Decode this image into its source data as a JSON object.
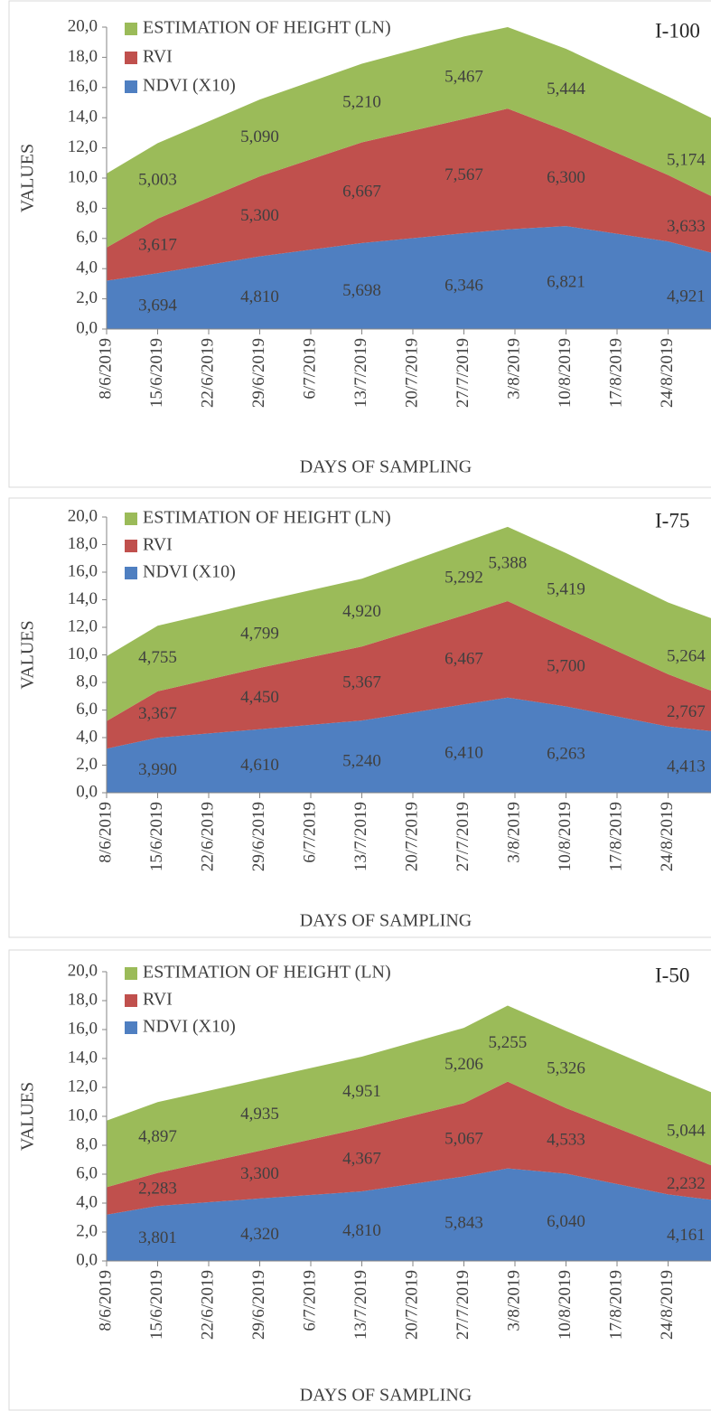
{
  "chart_data": [
    {
      "type": "area",
      "stacked": true,
      "title": "I-100",
      "ylabel": "VALUES",
      "xlabel": "DAYS OF SAMPLING",
      "legend": "upper left",
      "x": [
        "2019-06-08",
        "2019-06-15",
        "2019-06-29",
        "2019-07-13",
        "2019-07-27",
        "2019-08-02",
        "2019-08-10",
        "2019-08-24",
        "2019-08-31"
      ],
      "xlim": [
        "2019-06-08",
        "2019-08-31"
      ],
      "xticks": [
        {
          "value": "2019-06-08",
          "label": "8/6/2019"
        },
        {
          "value": "2019-06-15",
          "label": "15/6/2019"
        },
        {
          "value": "2019-06-22",
          "label": "22/6/2019"
        },
        {
          "value": "2019-06-29",
          "label": "29/6/2019"
        },
        {
          "value": "2019-07-06",
          "label": "6/7/2019"
        },
        {
          "value": "2019-07-13",
          "label": "13/7/2019"
        },
        {
          "value": "2019-07-20",
          "label": "20/7/2019"
        },
        {
          "value": "2019-07-27",
          "label": "27/7/2019"
        },
        {
          "value": "2019-08-03",
          "label": "3/8/2019"
        },
        {
          "value": "2019-08-10",
          "label": "10/8/2019"
        },
        {
          "value": "2019-08-17",
          "label": "17/8/2019"
        },
        {
          "value": "2019-08-24",
          "label": "24/8/2019"
        }
      ],
      "ylim": [
        0,
        20
      ],
      "yticks": [
        {
          "value": 0,
          "label": "0,0"
        },
        {
          "value": 2,
          "label": "2,0"
        },
        {
          "value": 4,
          "label": "4,0"
        },
        {
          "value": 6,
          "label": "6,0"
        },
        {
          "value": 8,
          "label": "8,0"
        },
        {
          "value": 10,
          "label": "10,0"
        },
        {
          "value": 12,
          "label": "12,0"
        },
        {
          "value": 14,
          "label": "14,0"
        },
        {
          "value": 16,
          "label": "16,0"
        },
        {
          "value": 18,
          "label": "18,0"
        },
        {
          "value": 20,
          "label": "20,0"
        }
      ],
      "series": [
        {
          "name": "NDVI (X10)",
          "color": "#4f7fc1",
          "values": [
            3.2,
            3.694,
            4.81,
            5.698,
            6.346,
            6.6,
            6.821,
            5.8,
            4.921
          ],
          "value_labels": [
            null,
            "3,694",
            "4,810",
            "5,698",
            "6,346",
            null,
            "6,821",
            null,
            "4,921"
          ]
        },
        {
          "name": "RVI",
          "color": "#c0504d",
          "values": [
            2.2,
            3.617,
            5.3,
            6.667,
            7.567,
            8.0,
            6.3,
            4.4,
            3.633
          ],
          "value_labels": [
            null,
            "3,617",
            "5,300",
            "6,667",
            "7,567",
            null,
            "6,300",
            null,
            "3,633"
          ]
        },
        {
          "name": "ESTIMATION OF HEIGHT (LN)",
          "color": "#9bbb59",
          "values": [
            4.9,
            5.003,
            5.09,
            5.21,
            5.467,
            5.4,
            5.444,
            5.2,
            5.174
          ],
          "value_labels": [
            null,
            "5,003",
            "5,090",
            "5,210",
            "5,467",
            null,
            "5,444",
            null,
            "5,174"
          ]
        }
      ]
    },
    {
      "type": "area",
      "stacked": true,
      "title": "I-75",
      "ylabel": "VALUES",
      "xlabel": "DAYS OF SAMPLING",
      "legend": "upper left",
      "x": [
        "2019-06-08",
        "2019-06-15",
        "2019-06-29",
        "2019-07-13",
        "2019-07-27",
        "2019-08-02",
        "2019-08-10",
        "2019-08-24",
        "2019-08-31"
      ],
      "xlim": [
        "2019-06-08",
        "2019-08-31"
      ],
      "xticks": [
        {
          "value": "2019-06-08",
          "label": "8/6/2019"
        },
        {
          "value": "2019-06-15",
          "label": "15/6/2019"
        },
        {
          "value": "2019-06-22",
          "label": "22/6/2019"
        },
        {
          "value": "2019-06-29",
          "label": "29/6/2019"
        },
        {
          "value": "2019-07-06",
          "label": "6/7/2019"
        },
        {
          "value": "2019-07-13",
          "label": "13/7/2019"
        },
        {
          "value": "2019-07-20",
          "label": "20/7/2019"
        },
        {
          "value": "2019-07-27",
          "label": "27/7/2019"
        },
        {
          "value": "2019-08-03",
          "label": "3/8/2019"
        },
        {
          "value": "2019-08-10",
          "label": "10/8/2019"
        },
        {
          "value": "2019-08-17",
          "label": "17/8/2019"
        },
        {
          "value": "2019-08-24",
          "label": "24/8/2019"
        }
      ],
      "ylim": [
        0,
        20
      ],
      "yticks": [
        {
          "value": 0,
          "label": "0,0"
        },
        {
          "value": 2,
          "label": "2,0"
        },
        {
          "value": 4,
          "label": "4,0"
        },
        {
          "value": 6,
          "label": "6,0"
        },
        {
          "value": 8,
          "label": "8,0"
        },
        {
          "value": 10,
          "label": "10,0"
        },
        {
          "value": 12,
          "label": "12,0"
        },
        {
          "value": 14,
          "label": "14,0"
        },
        {
          "value": 16,
          "label": "16,0"
        },
        {
          "value": 18,
          "label": "18,0"
        },
        {
          "value": 20,
          "label": "20,0"
        }
      ],
      "series": [
        {
          "name": "NDVI (X10)",
          "color": "#4f7fc1",
          "values": [
            3.2,
            3.99,
            4.61,
            5.24,
            6.41,
            6.9,
            6.263,
            4.8,
            4.413
          ],
          "value_labels": [
            null,
            "3,990",
            "4,610",
            "5,240",
            "6,410",
            null,
            "6,263",
            null,
            "4,413"
          ]
        },
        {
          "name": "RVI",
          "color": "#c0504d",
          "values": [
            2.0,
            3.367,
            4.45,
            5.367,
            6.467,
            7.0,
            5.7,
            3.8,
            2.767
          ],
          "value_labels": [
            null,
            "3,367",
            "4,450",
            "5,367",
            "6,467",
            null,
            "5,700",
            null,
            "2,767"
          ]
        },
        {
          "name": "ESTIMATION OF HEIGHT (LN)",
          "color": "#9bbb59",
          "values": [
            4.7,
            4.755,
            4.799,
            4.92,
            5.292,
            5.388,
            5.419,
            5.2,
            5.264
          ],
          "value_labels": [
            null,
            "4,755",
            "4,799",
            "4,920",
            "5,292",
            "5,388",
            "5,419",
            null,
            "5,264"
          ]
        }
      ]
    },
    {
      "type": "area",
      "stacked": true,
      "title": "I-50",
      "ylabel": "VALUES",
      "xlabel": "DAYS OF SAMPLING",
      "legend": "upper left",
      "x": [
        "2019-06-08",
        "2019-06-15",
        "2019-06-29",
        "2019-07-13",
        "2019-07-27",
        "2019-08-02",
        "2019-08-10",
        "2019-08-24",
        "2019-08-31"
      ],
      "xlim": [
        "2019-06-08",
        "2019-08-31"
      ],
      "xticks": [
        {
          "value": "2019-06-08",
          "label": "8/6/2019"
        },
        {
          "value": "2019-06-15",
          "label": "15/6/2019"
        },
        {
          "value": "2019-06-22",
          "label": "22/6/2019"
        },
        {
          "value": "2019-06-29",
          "label": "29/6/2019"
        },
        {
          "value": "2019-07-06",
          "label": "6/7/2019"
        },
        {
          "value": "2019-07-13",
          "label": "13/7/2019"
        },
        {
          "value": "2019-07-20",
          "label": "20/7/2019"
        },
        {
          "value": "2019-07-27",
          "label": "27/7/2019"
        },
        {
          "value": "2019-08-03",
          "label": "3/8/2019"
        },
        {
          "value": "2019-08-10",
          "label": "10/8/2019"
        },
        {
          "value": "2019-08-17",
          "label": "17/8/2019"
        },
        {
          "value": "2019-08-24",
          "label": "24/8/2019"
        }
      ],
      "ylim": [
        0,
        20
      ],
      "yticks": [
        {
          "value": 0,
          "label": "0,0"
        },
        {
          "value": 2,
          "label": "2,0"
        },
        {
          "value": 4,
          "label": "4,0"
        },
        {
          "value": 6,
          "label": "6,0"
        },
        {
          "value": 8,
          "label": "8,0"
        },
        {
          "value": 10,
          "label": "10,0"
        },
        {
          "value": 12,
          "label": "12,0"
        },
        {
          "value": 14,
          "label": "14,0"
        },
        {
          "value": 16,
          "label": "16,0"
        },
        {
          "value": 18,
          "label": "18,0"
        },
        {
          "value": 20,
          "label": "20,0"
        }
      ],
      "series": [
        {
          "name": "NDVI (X10)",
          "color": "#4f7fc1",
          "values": [
            3.2,
            3.801,
            4.32,
            4.81,
            5.843,
            6.4,
            6.04,
            4.6,
            4.161
          ],
          "value_labels": [
            null,
            "3,801",
            "4,320",
            "4,810",
            "5,843",
            null,
            "6,040",
            null,
            "4,161"
          ]
        },
        {
          "name": "RVI",
          "color": "#c0504d",
          "values": [
            1.9,
            2.283,
            3.3,
            4.367,
            5.067,
            6.0,
            4.533,
            3.2,
            2.232
          ],
          "value_labels": [
            null,
            "2,283",
            "3,300",
            "4,367",
            "5,067",
            null,
            "4,533",
            null,
            "2,232"
          ]
        },
        {
          "name": "ESTIMATION OF HEIGHT (LN)",
          "color": "#9bbb59",
          "values": [
            4.6,
            4.897,
            4.935,
            4.951,
            5.206,
            5.255,
            5.326,
            5.1,
            5.044
          ],
          "value_labels": [
            null,
            "4,897",
            "4,935",
            "4,951",
            "5,206",
            "5,255",
            "5,326",
            null,
            "5,044"
          ]
        }
      ]
    }
  ]
}
